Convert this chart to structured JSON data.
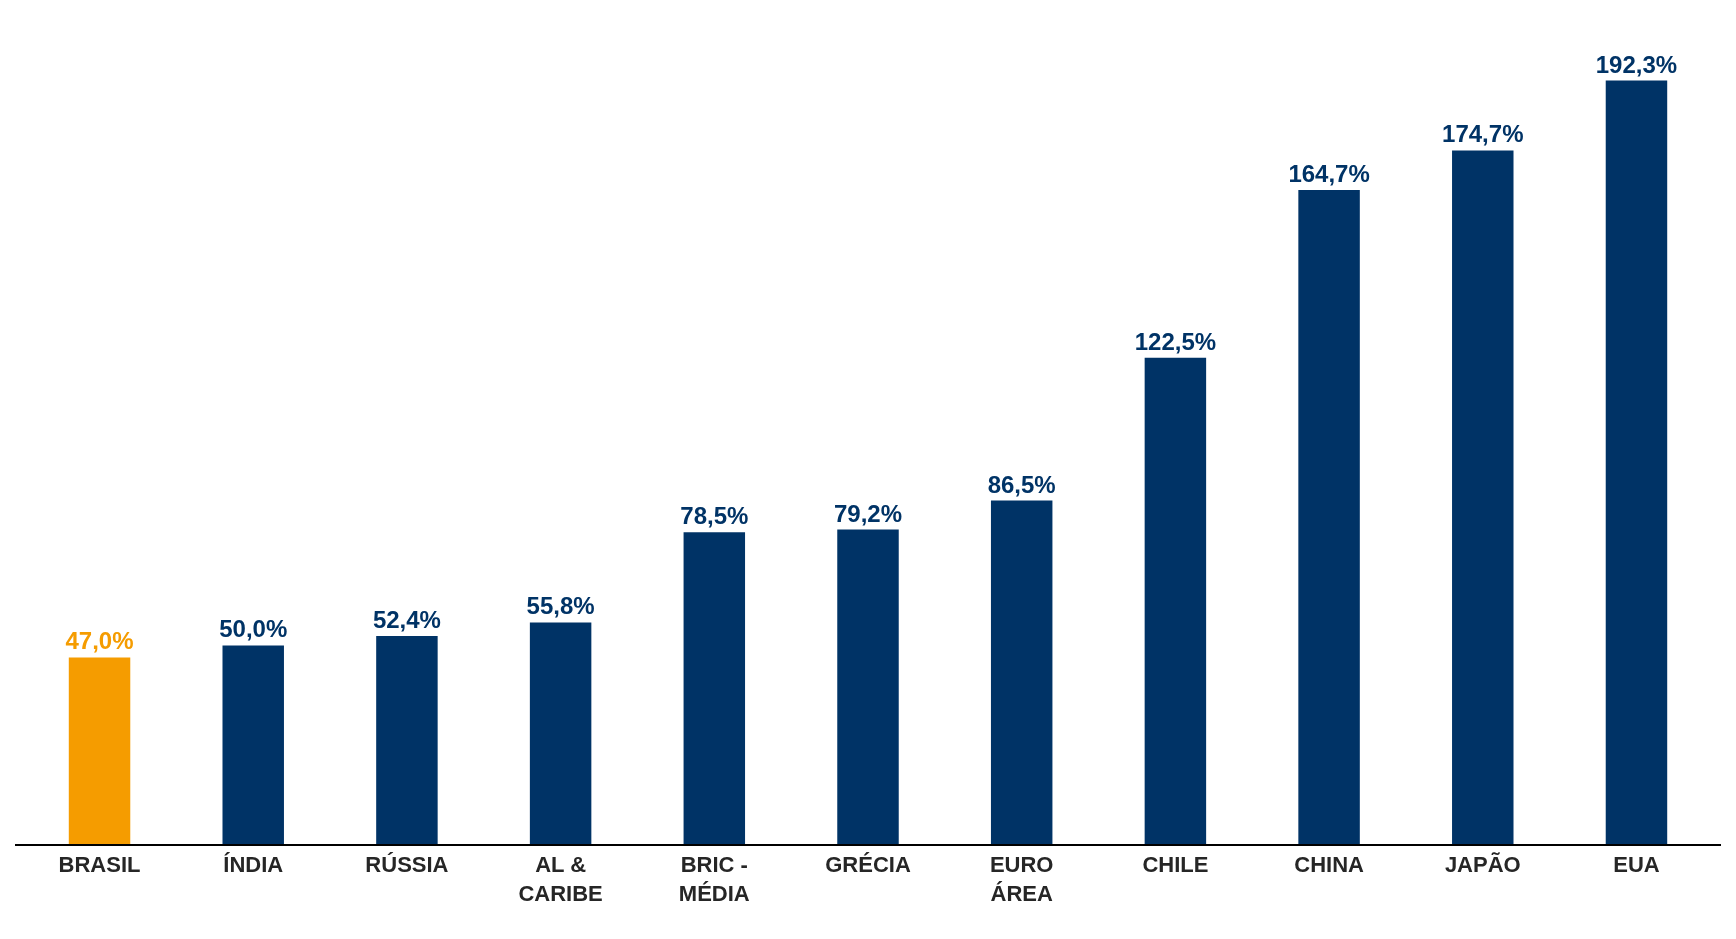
{
  "chart_data": {
    "type": "bar",
    "categories": [
      "BRASIL",
      "ÍNDIA",
      "RÚSSIA",
      "AL & CARIBE",
      "BRIC - MÉDIA",
      "GRÉCIA",
      "EURO ÁREA",
      "CHILE",
      "CHINA",
      "JAPÃO",
      "EUA"
    ],
    "values": [
      47.0,
      50.0,
      52.4,
      55.8,
      78.5,
      79.2,
      86.5,
      122.5,
      164.7,
      174.7,
      192.3
    ],
    "value_labels": [
      "47,0%",
      "50,0%",
      "52,4%",
      "55,8%",
      "78,5%",
      "79,2%",
      "86,5%",
      "122,5%",
      "164,7%",
      "174,7%",
      "192,3%"
    ],
    "colors": [
      "#f59c00",
      "#003366",
      "#003366",
      "#003366",
      "#003366",
      "#003366",
      "#003366",
      "#003366",
      "#003366",
      "#003366",
      "#003366"
    ]
  }
}
